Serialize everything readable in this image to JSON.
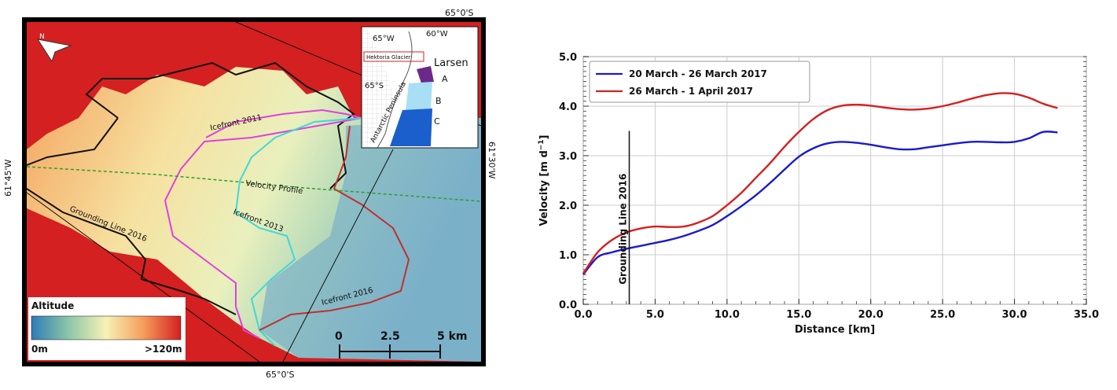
{
  "map": {
    "coords": {
      "top": "65°0'S",
      "bottom": "65°0'S",
      "left": "61°45'W",
      "right": "61°30'W"
    },
    "labels": {
      "icefront_2011": "Icefront 2011",
      "icefront_2013": "Icefront 2013",
      "icefront_2016": "Icefront 2016",
      "velocity_profile": "Velocity Profile",
      "grounding_line": "Grounding Line 2016"
    },
    "legend": {
      "title": "Altitude",
      "min_label": "0m",
      "max_label": ">120m"
    },
    "scalebar": {
      "tick0": "0",
      "tick1": "2.5",
      "tick2": "5 km"
    },
    "north_label": "N",
    "inset": {
      "lon1": "65°W",
      "lon2": "60°W",
      "lat": "65°S",
      "glacier_box": "Hektoria Glacier",
      "larsen": "Larsen",
      "peninsula": "Antarctic Peninsula",
      "section_a": "A",
      "section_b": "B",
      "section_c": "C"
    },
    "colors": {
      "ocean_red": "#d42020",
      "icefront_2011": "#e040e0",
      "icefront_2013": "#40d8d8",
      "icefront_2016": "#c03030",
      "grounding_line": "#111111",
      "velocity_profile": "#2ca02c"
    }
  },
  "chart_data": {
    "type": "line",
    "xlabel": "Distance [km]",
    "ylabel_main": "Velocity [m d",
    "ylabel_sup": "−1",
    "ylabel_end": "]",
    "xlim": [
      0,
      35
    ],
    "ylim": [
      0,
      5
    ],
    "xticks": [
      "0.0",
      "5.0",
      "10.0",
      "15.0",
      "20.0",
      "25.0",
      "30.0",
      "35.0"
    ],
    "yticks": [
      "0.0",
      "1.0",
      "2.0",
      "3.0",
      "4.0",
      "5.0"
    ],
    "grid": true,
    "legend_position": "top-left",
    "annotation": {
      "text": "Grounding Line 2016",
      "x": 3.2
    },
    "series": [
      {
        "name": "20 March - 26 March 2017",
        "color": "#1a1acc",
        "x": [
          0,
          1,
          2,
          3,
          4,
          5,
          6,
          7,
          8,
          9,
          10,
          11,
          12,
          13,
          14,
          15,
          16,
          17,
          18,
          19,
          20,
          21,
          22,
          23,
          24,
          25,
          26,
          27,
          28,
          29,
          30,
          31,
          32,
          33
        ],
        "y": [
          0.6,
          0.95,
          1.05,
          1.12,
          1.18,
          1.24,
          1.3,
          1.38,
          1.48,
          1.6,
          1.78,
          1.98,
          2.2,
          2.45,
          2.72,
          2.98,
          3.15,
          3.25,
          3.28,
          3.26,
          3.22,
          3.17,
          3.13,
          3.13,
          3.17,
          3.21,
          3.25,
          3.28,
          3.28,
          3.27,
          3.28,
          3.35,
          3.48,
          3.47
        ]
      },
      {
        "name": "26 March - 1 April 2017",
        "color": "#d42020",
        "x": [
          0,
          1,
          2,
          3,
          4,
          5,
          6,
          7,
          8,
          9,
          10,
          11,
          12,
          13,
          14,
          15,
          16,
          17,
          18,
          19,
          20,
          21,
          22,
          23,
          24,
          25,
          26,
          27,
          28,
          29,
          30,
          31,
          32,
          33
        ],
        "y": [
          0.62,
          1.05,
          1.3,
          1.45,
          1.53,
          1.57,
          1.56,
          1.57,
          1.65,
          1.78,
          2.0,
          2.25,
          2.55,
          2.85,
          3.18,
          3.48,
          3.74,
          3.92,
          4.01,
          4.03,
          4.01,
          3.97,
          3.94,
          3.93,
          3.95,
          4.0,
          4.07,
          4.15,
          4.22,
          4.26,
          4.25,
          4.17,
          4.05,
          3.96
        ]
      }
    ]
  }
}
